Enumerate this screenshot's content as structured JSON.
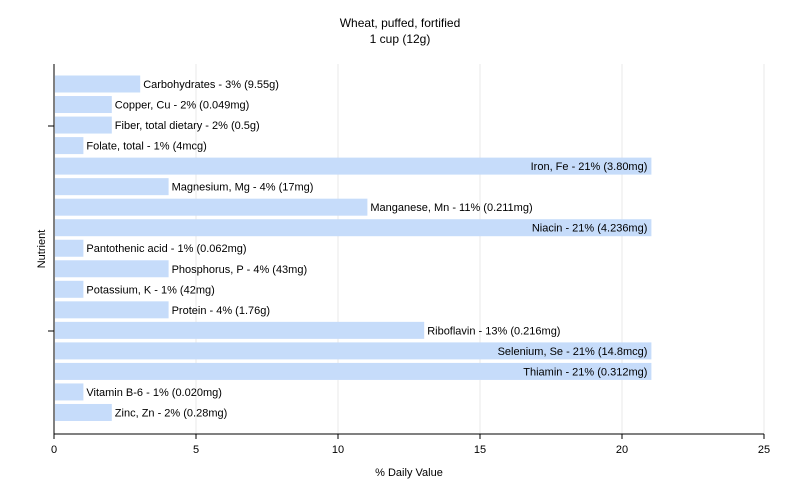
{
  "chart_data": {
    "type": "bar",
    "orientation": "horizontal",
    "title": "Wheat, puffed, fortified",
    "subtitle": "1 cup (12g)",
    "xlabel": "% Daily Value",
    "ylabel": "Nutrient",
    "xlim": [
      0,
      25
    ],
    "xticks": [
      "0",
      "5",
      "10",
      "15",
      "20",
      "25"
    ],
    "grid": true,
    "bar_color": "#c6dcfa",
    "gridline_color": "#e8e8e8",
    "categories": [
      "Carbohydrates",
      "Copper, Cu",
      "Fiber, total dietary",
      "Folate, total",
      "Iron, Fe",
      "Magnesium, Mg",
      "Manganese, Mn",
      "Niacin",
      "Pantothenic acid",
      "Phosphorus, P",
      "Potassium, K",
      "Protein",
      "Riboflavin",
      "Selenium, Se",
      "Thiamin",
      "Vitamin B-6",
      "Zinc, Zn"
    ],
    "values": [
      3,
      2,
      2,
      1,
      21,
      4,
      11,
      21,
      1,
      4,
      1,
      4,
      13,
      21,
      21,
      1,
      2
    ],
    "labels": [
      "Carbohydrates - 3% (9.55g)",
      "Copper, Cu - 2% (0.049mg)",
      "Fiber, total dietary - 2% (0.5g)",
      "Folate, total - 1% (4mcg)",
      "Iron, Fe - 21% (3.80mg)",
      "Magnesium, Mg - 4% (17mg)",
      "Manganese, Mn - 11% (0.211mg)",
      "Niacin - 21% (4.236mg)",
      "Pantothenic acid - 1% (0.062mg)",
      "Phosphorus, P - 4% (43mg)",
      "Potassium, K - 1% (42mg)",
      "Protein - 4% (1.76g)",
      "Riboflavin - 13% (0.216mg)",
      "Selenium, Se - 21% (14.8mcg)",
      "Thiamin - 21% (0.312mg)",
      "Vitamin B-6 - 1% (0.020mg)",
      "Zinc, Zn - 2% (0.28mg)"
    ]
  }
}
